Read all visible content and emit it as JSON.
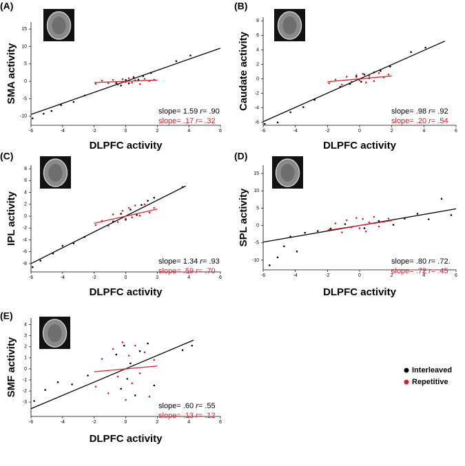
{
  "legend": [
    {
      "name": "Interleaved",
      "color": "#000000"
    },
    {
      "name": "Repetitive",
      "color": "#d0202e"
    }
  ],
  "chart_data": [
    {
      "type": "scatter",
      "panel": "(A)",
      "x_label": "DLPFC activity",
      "y_label": "SMA activity",
      "xlim": [
        -6,
        6
      ],
      "xticks": [
        -6,
        -4,
        -2,
        0,
        2,
        4,
        6
      ],
      "ylim": [
        -12.6,
        17
      ],
      "yticks": [
        -10,
        -5,
        0,
        5,
        10,
        15
      ],
      "series": [
        {
          "color": "#000000",
          "x": [
            -5.9,
            -5.2,
            -4.7,
            -4.1,
            -3.3,
            -2.6,
            -0.6,
            -0.3,
            0,
            0.2,
            0.5,
            0.8,
            1.1,
            1.6,
            3.2,
            4.1
          ],
          "y": [
            -10.6,
            -9.3,
            -8.5,
            -6.8,
            -5.9,
            -4.1,
            -0.5,
            -1.2,
            0.4,
            -0.6,
            1.2,
            0.5,
            1.5,
            2.4,
            5.8,
            7.4
          ],
          "fit": {
            "x": [
              -6,
              6
            ],
            "y": [
              -9.5,
              9.5
            ]
          },
          "annotation": [
            "slope= 1.59 ",
            "r",
            "= .90"
          ]
        },
        {
          "color": "#d0202e",
          "x": [
            -1.9,
            -1.5,
            -1.1,
            -0.8,
            -0.5,
            -0.2,
            0,
            0.2,
            0.4,
            0.6,
            0.9,
            1.2,
            1.5,
            1.8
          ],
          "y": [
            -0.7,
            0.2,
            -0.5,
            0.4,
            -0.9,
            0.6,
            -0.2,
            0.9,
            -0.4,
            0.3,
            -0.8,
            0.7,
            0.1,
            0.5
          ],
          "fit": {
            "x": [
              -2,
              2
            ],
            "y": [
              -0.34,
              0.34
            ]
          },
          "annotation": [
            "slope= .17 ",
            "r",
            "= .32"
          ]
        }
      ]
    },
    {
      "type": "scatter",
      "panel": "(B)",
      "x_label": "DLPFC activity",
      "y_label": "Caudate activity",
      "xlim": [
        -6,
        6
      ],
      "xticks": [
        -6,
        -4,
        -2,
        0,
        2,
        4,
        6
      ],
      "ylim": [
        -6.4,
        8.5
      ],
      "yticks": [
        -6,
        -4,
        -2,
        0,
        2,
        4,
        6,
        8
      ],
      "series": [
        {
          "color": "#000000",
          "x": [
            -5.9,
            -5.1,
            -4.3,
            -3.5,
            -2.8,
            -1.2,
            -0.6,
            -0.2,
            0.1,
            0.3,
            0.6,
            0.9,
            1.3,
            1.9,
            3.2,
            4.1
          ],
          "y": [
            -6.2,
            -6.0,
            -4.6,
            -3.9,
            -2.9,
            -1.1,
            -0.7,
            0.3,
            -0.4,
            0.6,
            0.1,
            0.9,
            1.1,
            1.7,
            3.7,
            4.3
          ],
          "fit": {
            "x": [
              -6,
              5.3
            ],
            "y": [
              -5.9,
              5.2
            ]
          },
          "annotation": [
            "slope= .98 ",
            "r",
            "= .92"
          ]
        },
        {
          "color": "#d0202e",
          "x": [
            -1.9,
            -1.5,
            -1.1,
            -0.8,
            -0.5,
            -0.2,
            0,
            0.2,
            0.4,
            0.6,
            0.9,
            1.2,
            1.5,
            1.8
          ],
          "y": [
            -0.6,
            -0.1,
            -0.8,
            0.3,
            -0.4,
            0.5,
            -0.2,
            0.7,
            -0.5,
            0.4,
            -0.3,
            0.8,
            0.2,
            0.6
          ],
          "fit": {
            "x": [
              -2,
              2
            ],
            "y": [
              -0.4,
              0.4
            ]
          },
          "annotation": [
            "slope= .20 ",
            "r",
            "= .54"
          ]
        }
      ]
    },
    {
      "type": "scatter",
      "panel": "(C)",
      "x_label": "DLPFC activity",
      "y_label": "IPL activity",
      "xlim": [
        -6,
        6
      ],
      "xticks": [
        -6,
        -4,
        -2,
        0,
        2,
        4,
        6
      ],
      "ylim": [
        -9.4,
        8.6
      ],
      "yticks": [
        -8,
        -6,
        -4,
        -2,
        0,
        2,
        4,
        6,
        8
      ],
      "series": [
        {
          "color": "#000000",
          "x": [
            -5.9,
            -5.4,
            -4.6,
            -4.0,
            -3.3,
            -2.6,
            -0.8,
            -0.3,
            0,
            0.3,
            0.7,
            1.0,
            1.4,
            1.8,
            3.6
          ],
          "y": [
            -8.6,
            -7.5,
            -6.3,
            -5.0,
            -4.6,
            -3.5,
            -0.9,
            0.4,
            -0.6,
            1.1,
            0.2,
            1.9,
            2.6,
            3.1,
            4.9
          ],
          "fit": {
            "x": [
              -6,
              3.8
            ],
            "y": [
              -8,
              5.1
            ]
          },
          "annotation": [
            "slope= 1.34 ",
            "r",
            "= .93"
          ]
        },
        {
          "color": "#d0202e",
          "x": [
            -1.9,
            -1.5,
            -1.1,
            -0.8,
            -0.5,
            -0.2,
            0,
            0.2,
            0.4,
            0.6,
            0.9,
            1.2,
            1.5,
            1.8
          ],
          "y": [
            -1.5,
            -0.8,
            -1.6,
            0.3,
            -1.0,
            0.9,
            -0.4,
            1.4,
            -0.2,
            1.8,
            0.1,
            2.0,
            0.6,
            1.4
          ],
          "fit": {
            "x": [
              -2,
              2
            ],
            "y": [
              -1.2,
              1.2
            ]
          },
          "annotation": [
            "slope= .59 ",
            "r",
            "= .70"
          ]
        }
      ]
    },
    {
      "type": "scatter",
      "panel": "(D)",
      "x_label": "DLPFC activity",
      "y_label": "SPL activity",
      "xlim": [
        -6,
        6
      ],
      "xticks": [
        -6,
        -4,
        -2,
        0,
        2,
        4,
        6
      ],
      "ylim": [
        -12.8,
        17.4
      ],
      "yticks": [
        -10,
        -5,
        0,
        5,
        10,
        15
      ],
      "series": [
        {
          "color": "#000000",
          "x": [
            -5.6,
            -5.1,
            -4.7,
            -4.3,
            -3.9,
            -3.4,
            -2.6,
            -1.8,
            -0.9,
            0.3,
            1.2,
            2.1,
            2.8,
            3.6,
            4.3,
            5.1,
            5.7
          ],
          "y": [
            -11.5,
            -9.2,
            -6.0,
            -3.2,
            -7.5,
            -2.1,
            -1.6,
            -0.9,
            0.4,
            -0.8,
            1.3,
            0.2,
            2.0,
            3.4,
            1.8,
            7.7,
            3.0
          ],
          "fit": {
            "x": [
              -6,
              6
            ],
            "y": [
              -4.8,
              4.8
            ]
          },
          "annotation": [
            "slope= .80 ",
            "r",
            "= .72."
          ]
        },
        {
          "color": "#d0202e",
          "x": [
            -1.9,
            -1.5,
            -1.1,
            -0.8,
            -0.5,
            -0.2,
            0,
            0.2,
            0.4,
            0.6,
            0.9,
            1.2,
            1.5,
            1.8
          ],
          "y": [
            -1.2,
            0.6,
            -2.0,
            1.5,
            -0.5,
            2.2,
            -0.8,
            1.9,
            -1.7,
            0.9,
            2.5,
            -0.3,
            1.1,
            2.0
          ],
          "fit": {
            "x": [
              -2,
              2
            ],
            "y": [
              -1.4,
              1.4
            ]
          },
          "annotation": [
            "slope= .72 ",
            "r",
            "= .45"
          ]
        }
      ]
    },
    {
      "type": "scatter",
      "panel": "(E)",
      "x_label": "DLPFC activity",
      "y_label": "SMF activity",
      "xlim": [
        -6,
        6
      ],
      "xticks": [
        -6,
        -4,
        -2,
        0,
        2,
        4,
        6
      ],
      "ylim": [
        -4.3,
        4.6
      ],
      "yticks": [
        -3,
        -2,
        -1,
        0,
        1,
        2,
        3,
        4
      ],
      "series": [
        {
          "color": "#000000",
          "x": [
            -5.8,
            -5.1,
            -4.3,
            -3.4,
            -2.4,
            -0.6,
            -0.3,
            -0.1,
            0.1,
            0.3,
            0.6,
            0.9,
            1.4,
            1.8,
            3.6,
            4.2
          ],
          "y": [
            -2.9,
            -1.9,
            -1.2,
            -1.4,
            -0.6,
            1.3,
            -1.8,
            2.1,
            -0.9,
            0.5,
            -2.4,
            1.6,
            2.3,
            -1.5,
            1.7,
            2.1
          ],
          "fit": {
            "x": [
              -6,
              4.3
            ],
            "y": [
              -3.6,
              2.6
            ]
          },
          "annotation": [
            "slope= .60 ",
            "r",
            "= .55"
          ]
        },
        {
          "color": "#d0202e",
          "x": [
            -1.9,
            -1.5,
            -1.1,
            -0.8,
            -0.5,
            -0.2,
            0,
            0.2,
            0.4,
            0.6,
            0.9,
            1.2,
            1.5,
            1.8
          ],
          "y": [
            -1.6,
            0.9,
            -2.2,
            1.8,
            -0.7,
            2.4,
            -2.8,
            1.2,
            -1.3,
            2.1,
            -0.4,
            1.5,
            -2.5,
            0.8
          ],
          "fit": {
            "x": [
              -2,
              2
            ],
            "y": [
              -0.26,
              0.26
            ]
          },
          "annotation": [
            "slope= .13 ",
            "r",
            "= .12"
          ]
        }
      ]
    }
  ]
}
